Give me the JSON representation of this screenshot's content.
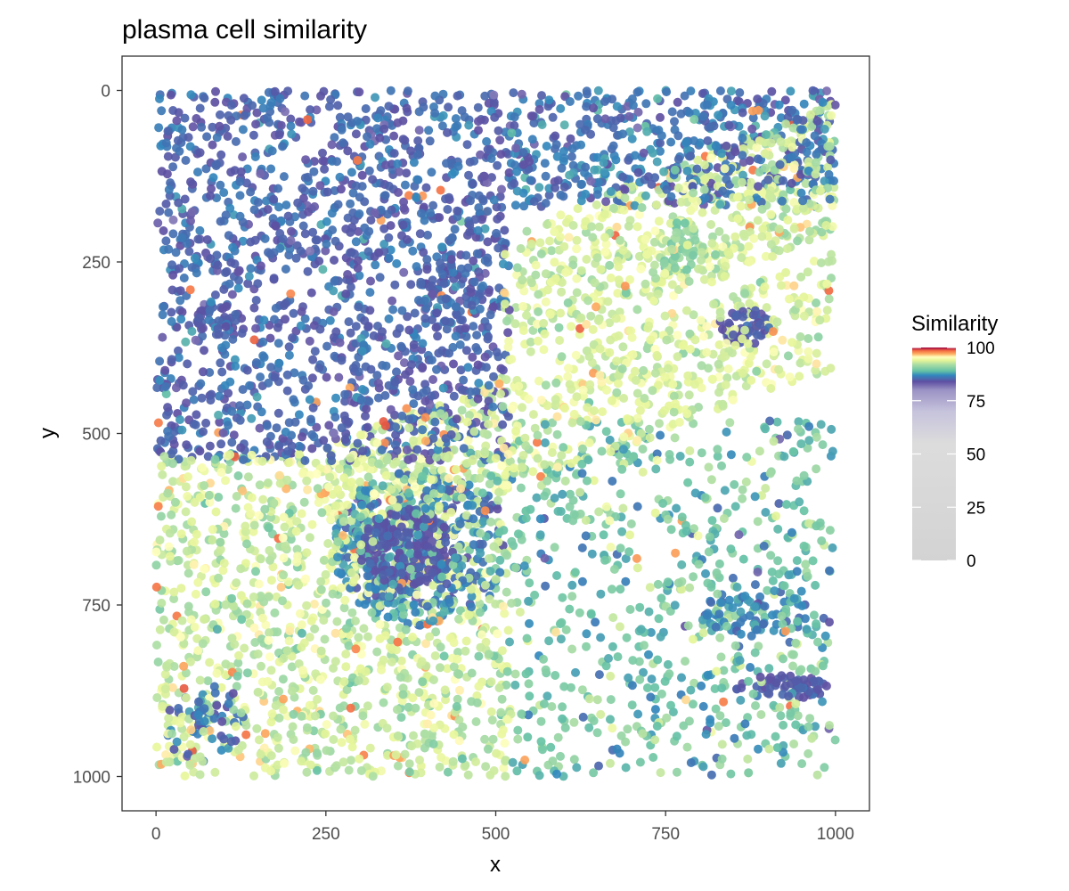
{
  "chart_data": {
    "type": "scatter",
    "title": "plasma cell similarity",
    "xlabel": "x",
    "ylabel": "y",
    "xlim": [
      -50,
      1050
    ],
    "ylim": [
      -50,
      1050
    ],
    "y_axis_reversed": true,
    "x_ticks": [
      0,
      250,
      500,
      750,
      1000
    ],
    "x_tick_labels": [
      "0",
      "250",
      "500",
      "750",
      "1000"
    ],
    "y_ticks": [
      0,
      250,
      500,
      750,
      1000
    ],
    "y_tick_labels": [
      "0",
      "250",
      "500",
      "750",
      "1000"
    ],
    "grid": false,
    "color_variable": "Similarity",
    "color_scale": {
      "range": [
        0,
        100
      ],
      "ticks": [
        0,
        25,
        50,
        75,
        100
      ],
      "tick_labels": [
        "0",
        "25",
        "50",
        "75",
        "100"
      ],
      "stops": [
        {
          "value": 0,
          "color": "#d3d3d3"
        },
        {
          "value": 55,
          "color": "#dcdcdc"
        },
        {
          "value": 70,
          "color": "#c6c3dc"
        },
        {
          "value": 80,
          "color": "#9b93c4"
        },
        {
          "value": 84,
          "color": "#5e4fa2"
        },
        {
          "value": 87,
          "color": "#3288bd"
        },
        {
          "value": 89,
          "color": "#66c2a5"
        },
        {
          "value": 92,
          "color": "#abdda4"
        },
        {
          "value": 94,
          "color": "#e6f598"
        },
        {
          "value": 95.5,
          "color": "#ffffbf"
        },
        {
          "value": 97,
          "color": "#fdae61"
        },
        {
          "value": 98.5,
          "color": "#f46d43"
        },
        {
          "value": 100,
          "color": "#9e0142"
        }
      ]
    },
    "regions": [
      {
        "kind": "rect",
        "x0": 0,
        "x1": 520,
        "y0": 0,
        "y1": 540,
        "mean": 85.2,
        "sd": 1.2,
        "count": 1450
      },
      {
        "kind": "rect",
        "x0": 520,
        "x1": 1000,
        "y0": 0,
        "y1": 170,
        "mean": 85.8,
        "sd": 1.4,
        "count": 520
      },
      {
        "kind": "band",
        "x0": 510,
        "x1": 1000,
        "yAtX0": 310,
        "yAtX1": 110,
        "width": 190,
        "mean": 93.2,
        "sd": 1.3,
        "count": 600
      },
      {
        "kind": "band",
        "x0": 250,
        "x1": 1000,
        "yAtX0": 600,
        "yAtX1": 320,
        "width": 170,
        "mean": 93.5,
        "sd": 1.3,
        "count": 650
      },
      {
        "kind": "rect",
        "x0": 0,
        "x1": 520,
        "y0": 530,
        "y1": 1000,
        "mean": 93.0,
        "sd": 1.6,
        "count": 1250
      },
      {
        "kind": "ellipse",
        "cx": 390,
        "cy": 665,
        "rx": 130,
        "ry": 115,
        "mean": 87.0,
        "sd": 1.6,
        "count": 420
      },
      {
        "kind": "ellipse",
        "cx": 370,
        "cy": 670,
        "rx": 70,
        "ry": 60,
        "mean": 84.4,
        "sd": 0.5,
        "count": 260
      },
      {
        "kind": "rect",
        "x0": 520,
        "x1": 1000,
        "y0": 480,
        "y1": 1000,
        "mean": 89.5,
        "sd": 2.2,
        "count": 700
      },
      {
        "kind": "ellipse",
        "cx": 870,
        "cy": 345,
        "rx": 45,
        "ry": 25,
        "mean": 84.6,
        "sd": 0.6,
        "count": 60
      },
      {
        "kind": "ellipse",
        "cx": 920,
        "cy": 870,
        "rx": 70,
        "ry": 18,
        "mean": 84.6,
        "sd": 0.6,
        "count": 60
      },
      {
        "kind": "ellipse",
        "cx": 90,
        "cy": 335,
        "rx": 30,
        "ry": 25,
        "mean": 84.6,
        "sd": 0.6,
        "count": 30
      },
      {
        "kind": "ellipse",
        "cx": 770,
        "cy": 230,
        "rx": 30,
        "ry": 40,
        "mean": 90.5,
        "sd": 0.8,
        "count": 40
      },
      {
        "kind": "ellipse",
        "cx": 70,
        "cy": 920,
        "rx": 60,
        "ry": 60,
        "mean": 86.0,
        "sd": 1.2,
        "count": 60
      },
      {
        "kind": "ellipse",
        "cx": 430,
        "cy": 300,
        "rx": 60,
        "ry": 60,
        "mean": 85.6,
        "sd": 1.0,
        "count": 60
      },
      {
        "kind": "ellipse",
        "cx": 880,
        "cy": 760,
        "rx": 80,
        "ry": 40,
        "mean": 86.5,
        "sd": 1.3,
        "count": 70
      }
    ],
    "approx_point_count": 6200,
    "point_opacity": 0.92
  }
}
